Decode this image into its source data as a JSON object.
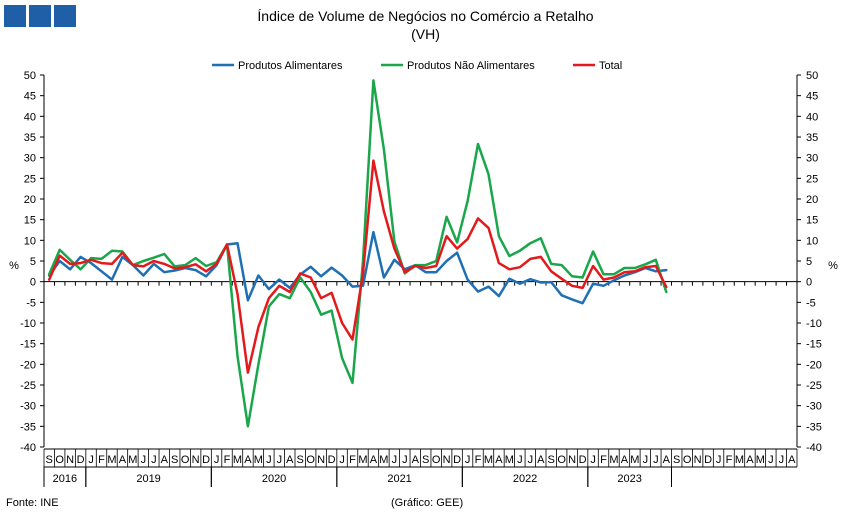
{
  "header": {
    "title": "Índice de Volume de Negócios no Comércio a Retalho",
    "subtitle": "(VH)",
    "logo_icon": "ine-logo-icon"
  },
  "footer": {
    "source": "Fonte: INE",
    "credit": "(Gráfico: GEE)"
  },
  "chart_data": {
    "type": "line",
    "title": "Índice de Volume de Negócios no Comércio a Retalho",
    "subtitle": "(VH)",
    "ylabel": "%",
    "ylim": [
      -40,
      50
    ],
    "yticks": [
      50,
      45,
      40,
      35,
      30,
      25,
      20,
      15,
      10,
      5,
      0,
      -5,
      -10,
      -15,
      -20,
      -25,
      -30,
      -35,
      -40
    ],
    "grid": false,
    "legend_position": "top",
    "month_labels": [
      "S",
      "O",
      "N",
      "D",
      "J",
      "F",
      "M",
      "A",
      "M",
      "J",
      "J",
      "A",
      "S",
      "O",
      "N",
      "D",
      "J",
      "F",
      "M",
      "A",
      "M",
      "J",
      "J",
      "A",
      "S",
      "O",
      "N",
      "D",
      "J",
      "F",
      "M",
      "A",
      "M",
      "J",
      "J",
      "A",
      "S",
      "O",
      "N",
      "D",
      "J",
      "F",
      "M",
      "A",
      "M",
      "J",
      "J",
      "A",
      "S",
      "O",
      "N",
      "D",
      "J",
      "F",
      "M",
      "A",
      "M",
      "J",
      "J",
      "A",
      "S",
      "O",
      "N",
      "D",
      "J",
      "F",
      "M",
      "A",
      "M",
      "J",
      "J",
      "A"
    ],
    "years": [
      {
        "label": "2016",
        "start": 0,
        "count": 4
      },
      {
        "label": "2019",
        "start": 4,
        "count": 12
      },
      {
        "label": "2020",
        "start": 16,
        "count": 12
      },
      {
        "label": "2021",
        "start": 28,
        "count": 12
      },
      {
        "label": "2022",
        "start": 40,
        "count": 12
      },
      {
        "label": "2023",
        "start": 52,
        "count": 8
      }
    ],
    "series": [
      {
        "name": "Produtos Alimentares",
        "color": "#1f6fb5",
        "values": [
          1.5,
          5.0,
          3.0,
          6.0,
          4.5,
          2.5,
          0.5,
          6.0,
          4.0,
          1.5,
          4.3,
          2.3,
          2.7,
          3.3,
          2.8,
          1.3,
          4.0,
          9.0,
          9.3,
          -4.5,
          1.5,
          -1.8,
          0.5,
          -1.5,
          1.7,
          3.6,
          1.3,
          3.4,
          1.5,
          -1.2,
          -1.0,
          12.0,
          1.0,
          5.3,
          3.0,
          4.0,
          2.3,
          2.3,
          5.0,
          7.0,
          0.5,
          -2.4,
          -1.2,
          -3.5,
          0.7,
          -0.5,
          0.6,
          -0.2,
          -0.1,
          -3.3,
          -4.3,
          -5.2,
          -0.5,
          -1.0,
          0.3,
          1.5,
          2.3,
          3.3,
          2.5,
          2.8
        ]
      },
      {
        "name": "Produtos Não Alimentares",
        "color": "#1aa64b",
        "values": [
          1.8,
          7.7,
          5.3,
          3.0,
          5.7,
          5.5,
          7.5,
          7.3,
          4.0,
          5.0,
          5.8,
          6.7,
          3.7,
          4.0,
          5.7,
          3.8,
          4.7,
          9.0,
          -18.0,
          -35.0,
          -20.0,
          -6.0,
          -3.0,
          -4.0,
          1.0,
          -2.5,
          -8.0,
          -7.0,
          -18.5,
          -24.5,
          5.0,
          48.7,
          32.0,
          9.7,
          2.0,
          4.0,
          4.0,
          5.0,
          15.7,
          9.5,
          19.5,
          33.3,
          26.0,
          11.0,
          6.2,
          7.5,
          9.3,
          10.5,
          4.3,
          4.0,
          1.3,
          1.0,
          7.3,
          1.8,
          1.8,
          3.3,
          3.3,
          4.2,
          5.3,
          -2.5
        ]
      },
      {
        "name": "Total",
        "color": "#e31a1c",
        "values": [
          0.5,
          6.3,
          4.3,
          4.5,
          5.3,
          4.5,
          4.3,
          7.0,
          4.0,
          3.7,
          5.0,
          4.3,
          3.2,
          3.5,
          4.2,
          2.5,
          4.3,
          9.0,
          -3.0,
          -22.0,
          -11.0,
          -4.0,
          -1.0,
          -2.5,
          2.0,
          1.0,
          -4.0,
          -2.7,
          -10.0,
          -14.0,
          2.0,
          29.3,
          17.0,
          8.0,
          2.3,
          3.8,
          3.3,
          3.8,
          11.0,
          8.0,
          10.3,
          15.3,
          13.0,
          4.5,
          3.0,
          3.5,
          5.5,
          6.0,
          2.5,
          0.7,
          -1.0,
          -1.5,
          3.8,
          0.5,
          1.0,
          2.3,
          2.5,
          3.5,
          3.8,
          -1.3
        ]
      }
    ]
  }
}
